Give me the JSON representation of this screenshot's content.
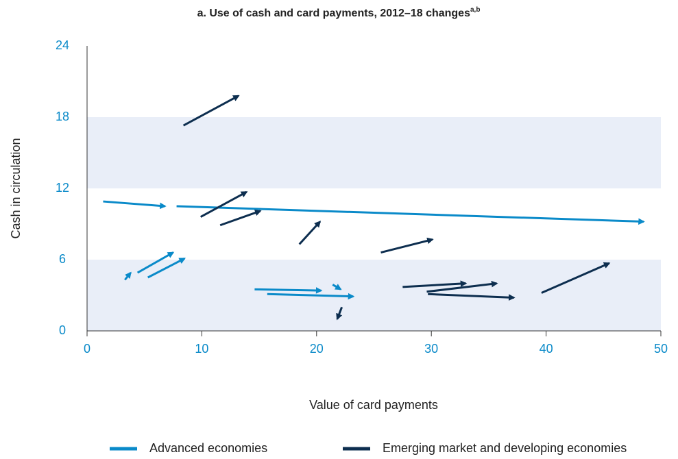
{
  "chart_data": {
    "type": "arrow",
    "title": "a. Use of cash and card payments, 2012–18 changes",
    "title_superscript": "a,b",
    "x_label": "Value of card payments",
    "y_label": "Cash in circulation",
    "xlim": [
      0,
      50
    ],
    "xticks": [
      0,
      10,
      20,
      30,
      40,
      50
    ],
    "ylim": [
      0,
      24
    ],
    "yticks": [
      0,
      6,
      12,
      18,
      24
    ],
    "banded": true,
    "band_color": "#e9eef8",
    "tick_color": "#0a8ac9",
    "legend": "bottom",
    "series": [
      {
        "name": "Advanced economies",
        "color": "#0a8ac9",
        "x_start": [
          1.4,
          7.8,
          3.3,
          4.4,
          5.3,
          14.6,
          15.7,
          21.4
        ],
        "y_start": [
          10.9,
          10.5,
          4.3,
          4.9,
          4.5,
          3.5,
          3.1,
          3.9
        ],
        "x_end": [
          6.8,
          48.5,
          3.8,
          7.5,
          8.5,
          20.4,
          23.2,
          22.1
        ],
        "y_end": [
          10.5,
          9.2,
          4.9,
          6.6,
          6.1,
          3.4,
          2.9,
          3.5
        ]
      },
      {
        "name": "Emerging market and developing economies",
        "color": "#0d2e4f",
        "x_start": [
          8.4,
          9.9,
          11.6,
          18.5,
          25.6,
          27.5,
          29.6,
          29.7,
          39.6,
          22.2
        ],
        "y_start": [
          17.3,
          9.6,
          8.9,
          7.3,
          6.6,
          3.7,
          3.3,
          3.1,
          3.2,
          2.0
        ],
        "x_end": [
          13.2,
          13.9,
          15.1,
          20.3,
          30.1,
          33.0,
          35.7,
          37.2,
          45.5,
          21.8
        ],
        "y_end": [
          19.8,
          11.7,
          10.1,
          9.2,
          7.7,
          4.0,
          4.0,
          2.8,
          5.7,
          1.0
        ]
      }
    ]
  }
}
